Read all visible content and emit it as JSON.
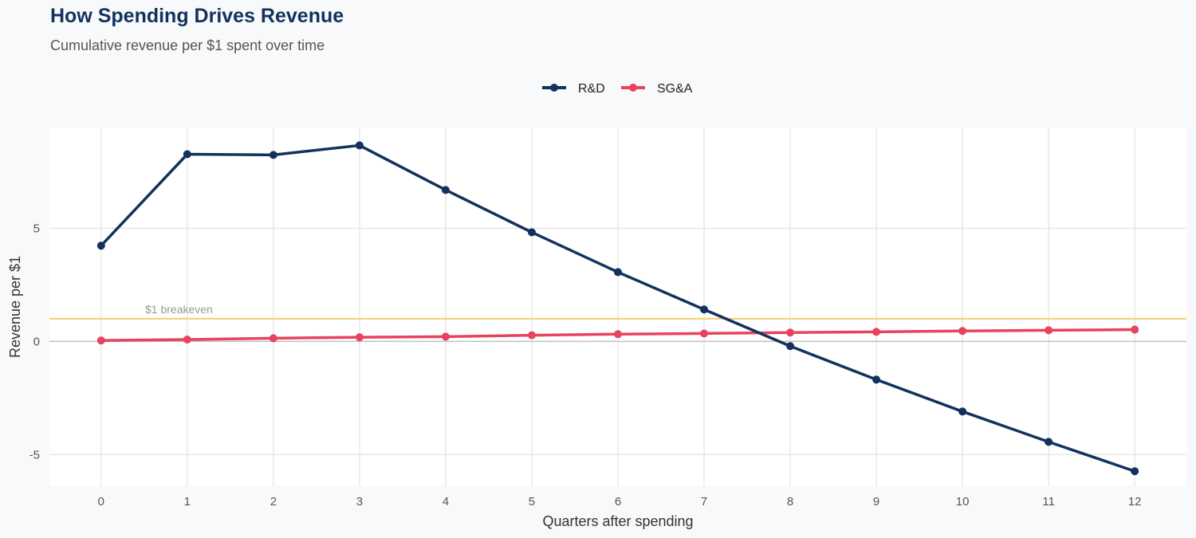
{
  "chart_data": {
    "type": "line",
    "title": "How Spending Drives Revenue",
    "subtitle": "Cumulative revenue per $1 spent over time",
    "xlabel": "Quarters after spending",
    "ylabel": "Revenue per $1",
    "x": [
      0,
      1,
      2,
      3,
      4,
      5,
      6,
      7,
      8,
      9,
      10,
      11,
      12
    ],
    "xlim": [
      -0.6,
      12.6
    ],
    "ylim": [
      -6.4,
      9.45
    ],
    "yticks": [
      -5,
      0,
      5
    ],
    "grid": true,
    "legend_position": "top",
    "series": [
      {
        "name": "R&D",
        "color": "#12325e",
        "values": [
          4.23,
          8.27,
          8.24,
          8.66,
          6.69,
          4.82,
          3.06,
          1.41,
          -0.21,
          -1.69,
          -3.1,
          -4.44,
          -5.74
        ]
      },
      {
        "name": "SG&A",
        "color": "#e8435e",
        "values": [
          0.04,
          0.08,
          0.14,
          0.18,
          0.21,
          0.27,
          0.32,
          0.35,
          0.39,
          0.42,
          0.46,
          0.49,
          0.52
        ]
      }
    ],
    "reference_line": {
      "y": 1,
      "label": "$1 breakeven",
      "color": "#f6cf6a"
    }
  }
}
